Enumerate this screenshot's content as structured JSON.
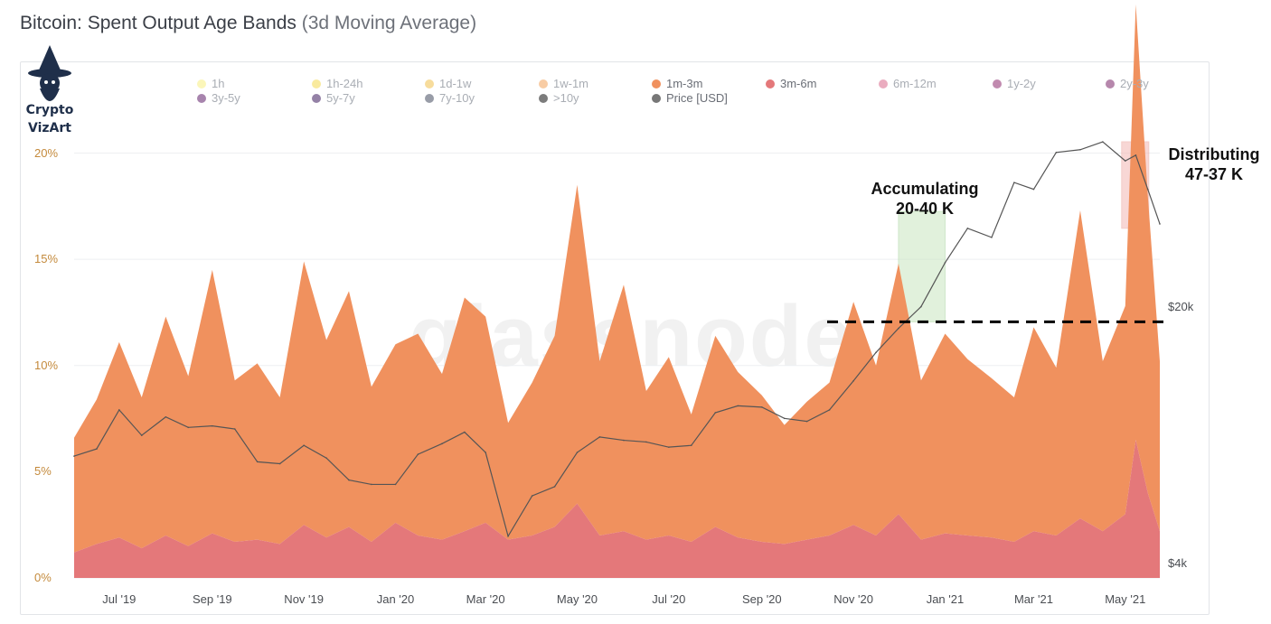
{
  "title": "Bitcoin: Spent Output Age Bands",
  "subtitle": "(3d Moving Average)",
  "watermark": "glassnode",
  "logo": {
    "line1": "Crypto",
    "line2": "VizArt"
  },
  "annotations": {
    "accumulating": {
      "line1": "Accumulating",
      "line2": "20-40 K"
    },
    "distributing": {
      "line1": "Distributing",
      "line2": "47-37 K"
    }
  },
  "colors": {
    "band_1m_3m": "#f0915e",
    "band_3m_6m": "#e4787a",
    "price_line": "#555555",
    "accumulate_box": "#c9e6c1",
    "distribute_box": "#f3b8b3"
  },
  "chart_data": {
    "type": "area",
    "title": "Bitcoin: Spent Output Age Bands (3d Moving Average)",
    "legend": [
      {
        "label": "1h",
        "color": "#f7ee7f",
        "active": false
      },
      {
        "label": "1h-24h",
        "color": "#f4d94e",
        "active": false
      },
      {
        "label": "1d-1w",
        "color": "#f1c04a",
        "active": false
      },
      {
        "label": "1w-1m",
        "color": "#f3a25a",
        "active": false
      },
      {
        "label": "1m-3m",
        "color": "#f0915e",
        "active": true
      },
      {
        "label": "3m-6m",
        "color": "#e4787a",
        "active": true
      },
      {
        "label": "6m-12m",
        "color": "#d9688a",
        "active": false
      },
      {
        "label": "1y-2y",
        "color": "#8e2a6e",
        "active": false
      },
      {
        "label": "2y-3y",
        "color": "#7a2468",
        "active": false
      },
      {
        "label": "3y-5y",
        "color": "#5e1f6a",
        "active": false
      },
      {
        "label": "5y-7y",
        "color": "#3d1a5c",
        "active": false
      },
      {
        "label": "7y-10y",
        "color": "#444a5e",
        "active": false
      },
      {
        "label": ">10y",
        "color": "#111111",
        "active": false
      },
      {
        "label": "Price [USD]",
        "color": "#777777",
        "active": true
      }
    ],
    "y_ticks": [
      "0%",
      "5%",
      "10%",
      "15%",
      "20%"
    ],
    "ylim": [
      0,
      21
    ],
    "right_ticks": [
      "$4k",
      "$20k"
    ],
    "price_log_range": [
      4000,
      66000
    ],
    "x_ticks": [
      "Jul '19",
      "Sep '19",
      "Nov '19",
      "Jan '20",
      "Mar '20",
      "May '20",
      "Jul '20",
      "Sep '20",
      "Nov '20",
      "Jan '21",
      "Mar '21",
      "May '21"
    ],
    "x_range": [
      "2019-06-01",
      "2021-05-24"
    ],
    "x": [
      "2019-06-01",
      "2019-06-16",
      "2019-07-01",
      "2019-07-16",
      "2019-08-01",
      "2019-08-16",
      "2019-09-01",
      "2019-09-16",
      "2019-10-01",
      "2019-10-16",
      "2019-11-01",
      "2019-11-16",
      "2019-12-01",
      "2019-12-16",
      "2020-01-01",
      "2020-01-16",
      "2020-02-01",
      "2020-02-16",
      "2020-03-01",
      "2020-03-16",
      "2020-04-01",
      "2020-04-16",
      "2020-05-01",
      "2020-05-16",
      "2020-06-01",
      "2020-06-16",
      "2020-07-01",
      "2020-07-16",
      "2020-08-01",
      "2020-08-16",
      "2020-09-01",
      "2020-09-16",
      "2020-10-01",
      "2020-10-16",
      "2020-11-01",
      "2020-11-16",
      "2020-12-01",
      "2020-12-16",
      "2021-01-01",
      "2021-01-16",
      "2021-02-01",
      "2021-02-16",
      "2021-03-01",
      "2021-03-16",
      "2021-04-01",
      "2021-04-16",
      "2021-05-01",
      "2021-05-08",
      "2021-05-16",
      "2021-05-24"
    ],
    "series": [
      {
        "name": "1m-3m",
        "values": [
          5.4,
          6.8,
          9.2,
          7.1,
          10.3,
          8.0,
          12.4,
          7.6,
          8.3,
          6.9,
          12.4,
          9.3,
          11.1,
          7.3,
          8.4,
          9.5,
          7.8,
          11.0,
          9.7,
          5.5,
          7.2,
          9.0,
          15.0,
          8.2,
          11.6,
          7.0,
          8.4,
          6.0,
          9.0,
          7.8,
          6.9,
          5.6,
          6.5,
          7.2,
          10.5,
          8.0,
          11.8,
          7.5,
          9.4,
          8.3,
          7.5,
          6.8,
          9.6,
          7.9,
          14.5,
          8.0,
          9.8,
          20.5,
          14.0,
          8.0
        ]
      },
      {
        "name": "3m-6m",
        "values": [
          1.2,
          1.6,
          1.9,
          1.4,
          2.0,
          1.5,
          2.1,
          1.7,
          1.8,
          1.6,
          2.5,
          1.9,
          2.4,
          1.7,
          2.6,
          2.0,
          1.8,
          2.2,
          2.6,
          1.8,
          2.0,
          2.4,
          3.5,
          2.0,
          2.2,
          1.8,
          2.0,
          1.7,
          2.4,
          1.9,
          1.7,
          1.6,
          1.8,
          2.0,
          2.5,
          2.0,
          3.0,
          1.8,
          2.1,
          2.0,
          1.9,
          1.7,
          2.2,
          2.0,
          2.8,
          2.2,
          3.0,
          6.5,
          4.0,
          2.2
        ]
      },
      {
        "name": "Price [USD]",
        "values": [
          8600,
          9000,
          11500,
          9800,
          11000,
          10300,
          10400,
          10200,
          8300,
          8200,
          9200,
          8500,
          7400,
          7200,
          7200,
          8700,
          9300,
          10000,
          8800,
          5200,
          6700,
          7100,
          8800,
          9700,
          9500,
          9400,
          9100,
          9200,
          11300,
          11800,
          11700,
          10900,
          10700,
          11500,
          13800,
          16500,
          19200,
          22000,
          29000,
          36000,
          34000,
          48000,
          46000,
          58000,
          59000,
          62000,
          55000,
          57000,
          46000,
          37000
        ]
      }
    ]
  }
}
